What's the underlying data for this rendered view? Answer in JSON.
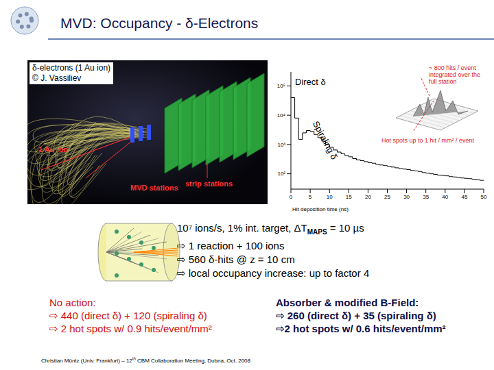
{
  "title": "MVD: Occupancy - δ-Electrons",
  "event_display": {
    "caption": [
      "δ-electrons (1 Au ion)",
      "© J. Vassiliev"
    ],
    "labels": {
      "ion": "1 Au ion",
      "mvd": "MVD stations",
      "strip": "strip stations"
    }
  },
  "chart_data": {
    "type": "histogram",
    "x_label": "Hit deposition time (ns)",
    "bins": [
      0,
      1,
      2,
      3,
      4,
      5,
      6,
      7,
      8,
      9,
      10,
      11,
      12,
      13,
      14,
      15,
      16,
      17,
      18,
      19,
      20,
      21,
      22,
      23,
      24,
      25,
      26,
      27,
      28,
      29,
      30,
      31,
      32,
      33,
      34,
      35,
      36,
      37,
      38,
      39,
      40,
      41,
      42,
      43,
      44,
      45,
      46,
      47,
      48,
      49,
      50
    ],
    "values": [
      40000,
      8000,
      1500,
      2500,
      3000,
      2800,
      2200,
      1700,
      1300,
      1000,
      800,
      650,
      550,
      480,
      420,
      380,
      330,
      300,
      280,
      260,
      240,
      230,
      210,
      200,
      190,
      180,
      170,
      160,
      150,
      145,
      140,
      130,
      125,
      120,
      110,
      105,
      100,
      95,
      90,
      88,
      85,
      80,
      78,
      75,
      72,
      70,
      68,
      65,
      62,
      60
    ],
    "color": "#000000",
    "log": "y",
    "grid": false,
    "xlim": [
      0,
      50
    ],
    "xticks": [
      0,
      5,
      10,
      15,
      20,
      25,
      30,
      35,
      40,
      45,
      50
    ],
    "ylim": [
      30,
      300000
    ],
    "yticks": [
      {
        "value": 100,
        "label": "10²"
      },
      {
        "value": 1000,
        "label": "10³"
      },
      {
        "value": 10000,
        "label": "10⁴"
      },
      {
        "value": 100000,
        "label": "10⁵"
      }
    ],
    "annotations": {
      "direct": "Direct δ",
      "spiraling": "Spiraling δ",
      "integrated": [
        "~ 800 hits / event",
        "integrated over the",
        "full station"
      ],
      "hot_spots": "Hot spots up to 1 hit / mm² / event"
    }
  },
  "conditions": [
    [
      "10⁷ ions/s, 1% int. target, ΔT",
      "MAPS",
      " = 10 µs"
    ],
    "⇨ 1 reaction + 100 ions",
    "⇨ 560 δ-hits @ z = 10 cm",
    "⇨ local occupancy increase: up to factor 4"
  ],
  "no_action": {
    "heading": "No action:",
    "lines": [
      "⇨ 440 (direct δ) + 120 (spiraling δ)",
      "⇨ 2 hot spots w/ 0.9 hits/event/mm²"
    ]
  },
  "absorber": {
    "heading": "Absorber & modified B-Field:",
    "lines": [
      "⇨ 260 (direct δ) + 35 (spiraling δ)",
      "⇨2 hot spots w/ 0.6 hits/event/mm²"
    ]
  },
  "footer": [
    "Christian Müntz (Univ. Frankfurt) – 12",
    "th",
    " CBM Collaboration Meeting, Dubna, Oct. 2008"
  ]
}
